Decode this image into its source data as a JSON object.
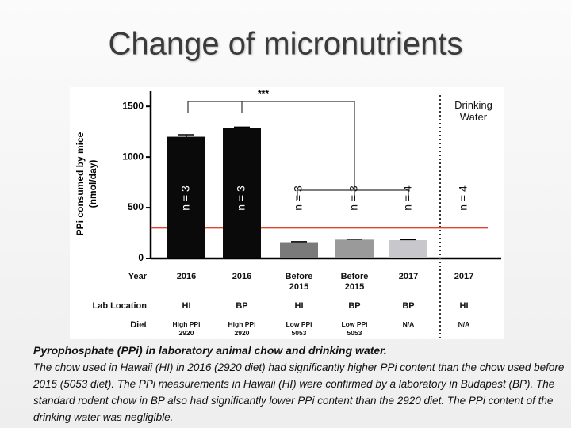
{
  "slide": {
    "title": "Change of micronutrients",
    "caption_heading": "Pyrophosphate (PPi) in laboratory animal chow and drinking water.",
    "caption_body": "The chow used in Hawaii (HI) in 2016 (2920 diet) had significantly higher PPi content than the chow used before 2015 (5053 diet). The PPi measurements in Hawaii (HI) were confirmed by a laboratory in Budapest (BP). The standard rodent chow in BP also had significantly lower PPi content than the 2920 diet. The PPi content of the drinking water was negligible."
  },
  "chart_data": {
    "type": "bar",
    "y_label": [
      "PPi consumed by mice",
      "(nmol/day)"
    ],
    "categories": [
      "2016",
      "2016",
      "Before 2015",
      "Before 2015",
      "2017",
      "2017"
    ],
    "values": [
      1200,
      1285,
      160,
      185,
      180,
      0
    ],
    "errors": [
      20,
      10,
      5,
      5,
      5,
      0
    ],
    "colors": [
      "#0a0a0a",
      "#0a0a0a",
      "#7a7a7a",
      "#9a9a9a",
      "#c8c8cc",
      "#c8c8cc"
    ],
    "n_labels": [
      "n = 3",
      "n = 3",
      "n = 3",
      "n = 3",
      "n = 4",
      "n = 4"
    ],
    "row_headers": [
      "Year",
      "Lab Location",
      "Diet"
    ],
    "lab_location": [
      "HI",
      "BP",
      "HI",
      "BP",
      "BP",
      "HI"
    ],
    "diet": [
      "High PPi 2920",
      "High PPi 2920",
      "Low PPi 5053",
      "Low PPi 5053",
      "N/A",
      "N/A"
    ],
    "significance": "***",
    "annotation": "Drinking Water",
    "reference_line": {
      "value": 300,
      "color": "#e0452b"
    },
    "ylim": [
      0,
      1650
    ],
    "yticks": [
      0,
      500,
      1000,
      1500
    ]
  }
}
